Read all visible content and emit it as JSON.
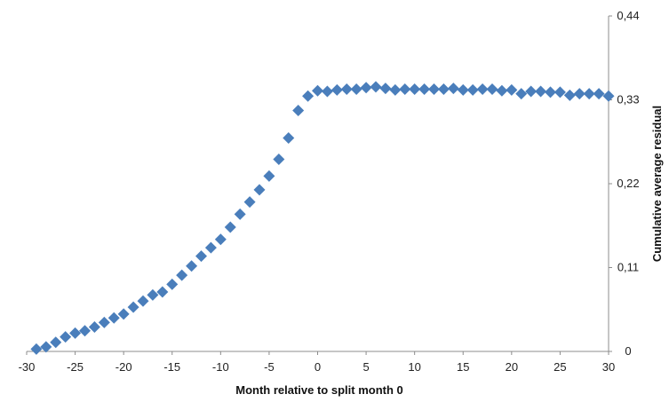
{
  "chart_data": {
    "type": "scatter",
    "title": "",
    "xlabel": "Month relative to split month 0",
    "ylabel": "Cumulative average residual",
    "xlim": [
      -30,
      30
    ],
    "ylim": [
      0,
      0.44
    ],
    "x_ticks": [
      -30,
      -25,
      -20,
      -15,
      -10,
      -5,
      0,
      5,
      10,
      15,
      20,
      25,
      30
    ],
    "x_tick_labels": [
      "-30",
      "-25",
      "-20",
      "-15",
      "-10",
      "-5",
      "0",
      "5",
      "10",
      "15",
      "20",
      "25",
      "30"
    ],
    "y_ticks": [
      0,
      0.11,
      0.22,
      0.33,
      0.44
    ],
    "y_tick_labels": [
      "0",
      "0,11",
      "0,22",
      "0,33",
      "0,44"
    ],
    "y_axis_side": "right",
    "grid": false,
    "legend": "none",
    "marker": "diamond",
    "color": "#4a7ebb",
    "series": [
      {
        "x": [
          -29,
          -28,
          -27,
          -26,
          -25,
          -24,
          -23,
          -22,
          -21,
          -20,
          -19,
          -18,
          -17,
          -16,
          -15,
          -14,
          -13,
          -12,
          -11,
          -10,
          -9,
          -8,
          -7,
          -6,
          -5,
          -4,
          -3,
          -2,
          -1,
          0,
          1,
          2,
          3,
          4,
          5,
          6,
          7,
          8,
          9,
          10,
          11,
          12,
          13,
          14,
          15,
          16,
          17,
          18,
          19,
          20,
          21,
          22,
          23,
          24,
          25,
          26,
          27,
          28,
          29,
          30
        ],
        "y": [
          0.003,
          0.006,
          0.012,
          0.019,
          0.024,
          0.027,
          0.032,
          0.038,
          0.044,
          0.049,
          0.058,
          0.066,
          0.074,
          0.078,
          0.088,
          0.1,
          0.112,
          0.125,
          0.136,
          0.147,
          0.163,
          0.18,
          0.196,
          0.212,
          0.23,
          0.252,
          0.28,
          0.316,
          0.335,
          0.342,
          0.341,
          0.343,
          0.344,
          0.344,
          0.346,
          0.347,
          0.345,
          0.343,
          0.344,
          0.344,
          0.344,
          0.344,
          0.344,
          0.345,
          0.343,
          0.343,
          0.344,
          0.344,
          0.342,
          0.343,
          0.338,
          0.341,
          0.341,
          0.34,
          0.34,
          0.336,
          0.338,
          0.338,
          0.338,
          0.335
        ]
      }
    ]
  }
}
